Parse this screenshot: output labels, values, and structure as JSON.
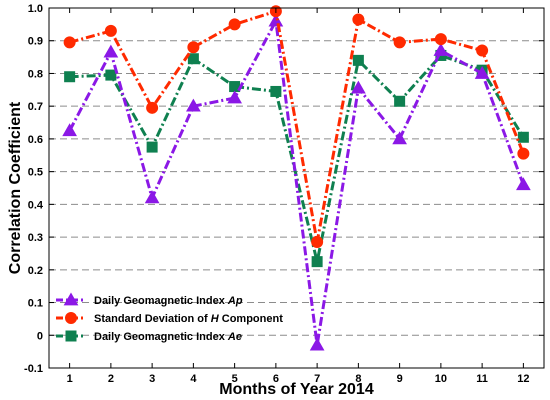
{
  "chart_data": {
    "type": "line",
    "title": "",
    "xlabel": "Months of Year 2014",
    "ylabel": "Correlation Coefficient",
    "x": [
      1,
      2,
      3,
      4,
      5,
      6,
      7,
      8,
      9,
      10,
      11,
      12
    ],
    "xlim": [
      0.5,
      12.5
    ],
    "ylim": [
      -0.1,
      1.0
    ],
    "yticks": [
      -0.1,
      0,
      0.1,
      0.2,
      0.3,
      0.4,
      0.5,
      0.6,
      0.7,
      0.8,
      0.9,
      1.0
    ],
    "ytick_labels": [
      "-0.1",
      "0",
      "0.1",
      "0.2",
      "0.3",
      "0.4",
      "0.5",
      "0.6",
      "0.7",
      "0.8",
      "0.9",
      "1.0"
    ],
    "grid": "horizontal dashed",
    "legend_position": "bottom-left",
    "series": [
      {
        "name_prefix": "Daily Geomagnetic Index ",
        "name_italic": "Ap",
        "name_suffix": "",
        "color": "#8B18E6",
        "marker": "triangle",
        "values": [
          0.625,
          0.865,
          0.42,
          0.7,
          0.725,
          0.96,
          -0.03,
          0.755,
          0.6,
          0.87,
          0.8,
          0.46
        ]
      },
      {
        "name_prefix": "Standard Deviation of ",
        "name_italic": "H",
        "name_suffix": " Component",
        "color": "#FF2A00",
        "marker": "circle",
        "values": [
          0.895,
          0.93,
          0.695,
          0.88,
          0.95,
          0.99,
          0.285,
          0.965,
          0.895,
          0.905,
          0.87,
          0.555
        ]
      },
      {
        "name_prefix": "Daily Geomagnetic Index ",
        "name_italic": "Ae",
        "name_suffix": "",
        "color": "#0F8050",
        "marker": "square",
        "values": [
          0.79,
          0.795,
          0.575,
          0.845,
          0.76,
          0.745,
          0.225,
          0.84,
          0.715,
          0.855,
          0.81,
          0.605
        ]
      }
    ]
  }
}
